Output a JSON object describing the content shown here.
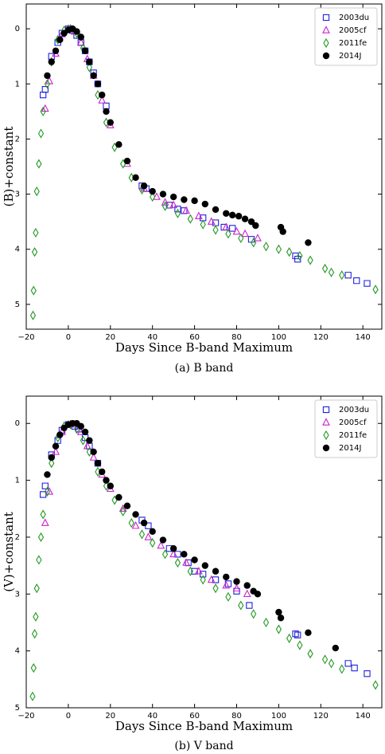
{
  "chart_data": [
    {
      "type": "scatter",
      "xlabel": "Days Since B-band Maximum",
      "ylabel": "(B)+constant",
      "caption": "(a)  B  band",
      "xlim": [
        -20,
        149
      ],
      "ylim": [
        5.45,
        -0.45
      ],
      "xticks": [
        {
          "value": -20,
          "label": "−20"
        },
        0,
        20,
        40,
        60,
        80,
        100,
        120,
        140
      ],
      "yticks": [
        0,
        1,
        2,
        3,
        4,
        5
      ],
      "legend": "upper right",
      "series": [
        {
          "name": "2003du",
          "color": "#2222dd",
          "marker": "square",
          "x": [
            -12,
            -11,
            -8,
            -5,
            -3,
            0,
            2,
            4,
            6,
            8,
            10,
            12,
            14,
            18,
            35,
            37,
            48,
            52,
            55,
            64,
            70,
            74,
            78,
            87,
            108,
            109,
            133,
            137,
            142
          ],
          "values": [
            1.2,
            1.1,
            0.5,
            0.25,
            0.08,
            0,
            0.03,
            0.12,
            0.25,
            0.4,
            0.6,
            0.8,
            1.0,
            1.4,
            2.85,
            2.9,
            3.2,
            3.27,
            3.3,
            3.43,
            3.52,
            3.6,
            3.62,
            3.82,
            4.12,
            4.18,
            4.47,
            4.57,
            4.62
          ]
        },
        {
          "name": "2005cf",
          "color": "#cc22cc",
          "marker": "triangle",
          "x": [
            -11,
            -9,
            -6,
            -3,
            0,
            3,
            6,
            9,
            12,
            16,
            20,
            28,
            36,
            42,
            46,
            50,
            56,
            62,
            68,
            75,
            80,
            84,
            90
          ],
          "values": [
            1.45,
            0.95,
            0.45,
            0.1,
            0,
            0.05,
            0.25,
            0.55,
            0.85,
            1.3,
            1.75,
            2.45,
            2.9,
            3.05,
            3.15,
            3.2,
            3.3,
            3.4,
            3.5,
            3.6,
            3.68,
            3.72,
            3.8
          ]
        },
        {
          "name": "2011fe",
          "color": "#229922",
          "marker": "diamond",
          "x": [
            -16.8,
            -16.5,
            -16,
            -15.5,
            -15,
            -14,
            -13,
            -12,
            -10,
            -8,
            -5,
            -2,
            1,
            4,
            7,
            10,
            14,
            18,
            22,
            26,
            30,
            35,
            40,
            46,
            52,
            58,
            64,
            70,
            76,
            82,
            88,
            94,
            100,
            105,
            110,
            115,
            122,
            125,
            130,
            146
          ],
          "values": [
            5.2,
            4.75,
            4.05,
            3.7,
            2.95,
            2.45,
            1.9,
            1.5,
            1.0,
            0.6,
            0.2,
            0.03,
            0,
            0.08,
            0.35,
            0.7,
            1.2,
            1.7,
            2.15,
            2.45,
            2.7,
            2.92,
            3.05,
            3.22,
            3.35,
            3.45,
            3.55,
            3.65,
            3.72,
            3.8,
            3.88,
            3.95,
            4.0,
            4.05,
            4.12,
            4.2,
            4.35,
            4.42,
            4.47,
            4.73
          ]
        },
        {
          "name": "2014J",
          "color": "#000000",
          "marker": "circle",
          "x": [
            -10,
            -8,
            -6,
            -4,
            -2,
            0,
            2,
            4,
            6,
            8,
            10,
            12,
            14,
            16,
            18,
            20,
            24,
            28,
            32,
            36,
            40,
            45,
            50,
            55,
            60,
            65,
            70,
            75,
            78,
            81,
            84,
            87,
            89,
            101,
            102,
            114
          ],
          "values": [
            0.85,
            0.6,
            0.4,
            0.2,
            0.08,
            0.02,
            0,
            0.05,
            0.15,
            0.4,
            0.6,
            0.85,
            1.0,
            1.2,
            1.5,
            1.7,
            2.1,
            2.4,
            2.7,
            2.85,
            2.95,
            3.0,
            3.05,
            3.1,
            3.12,
            3.18,
            3.28,
            3.35,
            3.38,
            3.4,
            3.45,
            3.5,
            3.57,
            3.6,
            3.68,
            3.88
          ]
        }
      ]
    },
    {
      "type": "scatter",
      "xlabel": "Days Since B-band Maximum",
      "ylabel": "(V)+constant",
      "caption": "(b)  V  band",
      "xlim": [
        -20,
        149
      ],
      "ylim": [
        5,
        -0.48
      ],
      "xticks": [
        {
          "value": -20,
          "label": "−20"
        },
        0,
        20,
        40,
        60,
        80,
        100,
        120,
        140
      ],
      "yticks": [
        0,
        1,
        2,
        3,
        4,
        5
      ],
      "legend": "upper right",
      "series": [
        {
          "name": "2003du",
          "color": "#2222dd",
          "marker": "square",
          "x": [
            -12,
            -11,
            -8,
            -5,
            -3,
            0,
            3,
            5,
            8,
            10,
            14,
            35,
            38,
            48,
            52,
            57,
            60,
            64,
            70,
            76,
            80,
            86,
            108,
            109,
            133,
            136,
            142
          ],
          "values": [
            1.25,
            1.1,
            0.55,
            0.3,
            0.12,
            0.02,
            0.05,
            0.1,
            0.25,
            0.4,
            0.7,
            1.7,
            1.8,
            2.2,
            2.3,
            2.45,
            2.6,
            2.65,
            2.75,
            2.82,
            2.95,
            3.2,
            3.7,
            3.72,
            4.22,
            4.3,
            4.4
          ]
        },
        {
          "name": "2005cf",
          "color": "#cc22cc",
          "marker": "triangle",
          "x": [
            -11,
            -9,
            -6,
            -3,
            0,
            3,
            6,
            9,
            12,
            16,
            20,
            26,
            32,
            38,
            44,
            50,
            56,
            62,
            68,
            75,
            80,
            85
          ],
          "values": [
            1.75,
            1.2,
            0.5,
            0.15,
            0.02,
            0.02,
            0.15,
            0.4,
            0.6,
            0.9,
            1.15,
            1.5,
            1.8,
            2.0,
            2.15,
            2.3,
            2.45,
            2.6,
            2.75,
            2.85,
            2.9,
            3.0
          ]
        },
        {
          "name": "2011fe",
          "color": "#229922",
          "marker": "diamond",
          "x": [
            -17,
            -16.5,
            -16,
            -15.5,
            -15,
            -14,
            -13,
            -12,
            -10,
            -8,
            -5,
            -2,
            1,
            4,
            7,
            10,
            14,
            18,
            22,
            26,
            30,
            35,
            40,
            46,
            52,
            58,
            64,
            70,
            76,
            82,
            88,
            94,
            100,
            105,
            110,
            115,
            122,
            125,
            130,
            146
          ],
          "values": [
            4.8,
            4.3,
            3.7,
            3.4,
            2.9,
            2.4,
            2.0,
            1.6,
            1.2,
            0.7,
            0.25,
            0.05,
            0.02,
            0.1,
            0.3,
            0.5,
            0.85,
            1.1,
            1.35,
            1.55,
            1.75,
            1.95,
            2.1,
            2.3,
            2.45,
            2.6,
            2.75,
            2.9,
            3.05,
            3.2,
            3.35,
            3.5,
            3.62,
            3.78,
            3.9,
            4.05,
            4.15,
            4.22,
            4.32,
            4.6
          ]
        },
        {
          "name": "2014J",
          "color": "#000000",
          "marker": "circle",
          "x": [
            -10,
            -8,
            -6,
            -4,
            -2,
            0,
            2,
            4,
            6,
            8,
            10,
            12,
            14,
            16,
            18,
            20,
            24,
            28,
            32,
            36,
            40,
            45,
            50,
            55,
            60,
            65,
            70,
            75,
            80,
            85,
            88,
            90,
            100,
            101,
            114,
            127
          ],
          "values": [
            0.9,
            0.6,
            0.4,
            0.2,
            0.08,
            0.02,
            0,
            0,
            0.05,
            0.15,
            0.3,
            0.5,
            0.7,
            0.85,
            1.0,
            1.1,
            1.3,
            1.45,
            1.6,
            1.75,
            1.9,
            2.05,
            2.2,
            2.3,
            2.4,
            2.5,
            2.6,
            2.7,
            2.78,
            2.85,
            2.95,
            3.0,
            3.32,
            3.42,
            3.68,
            3.95
          ]
        }
      ]
    }
  ]
}
